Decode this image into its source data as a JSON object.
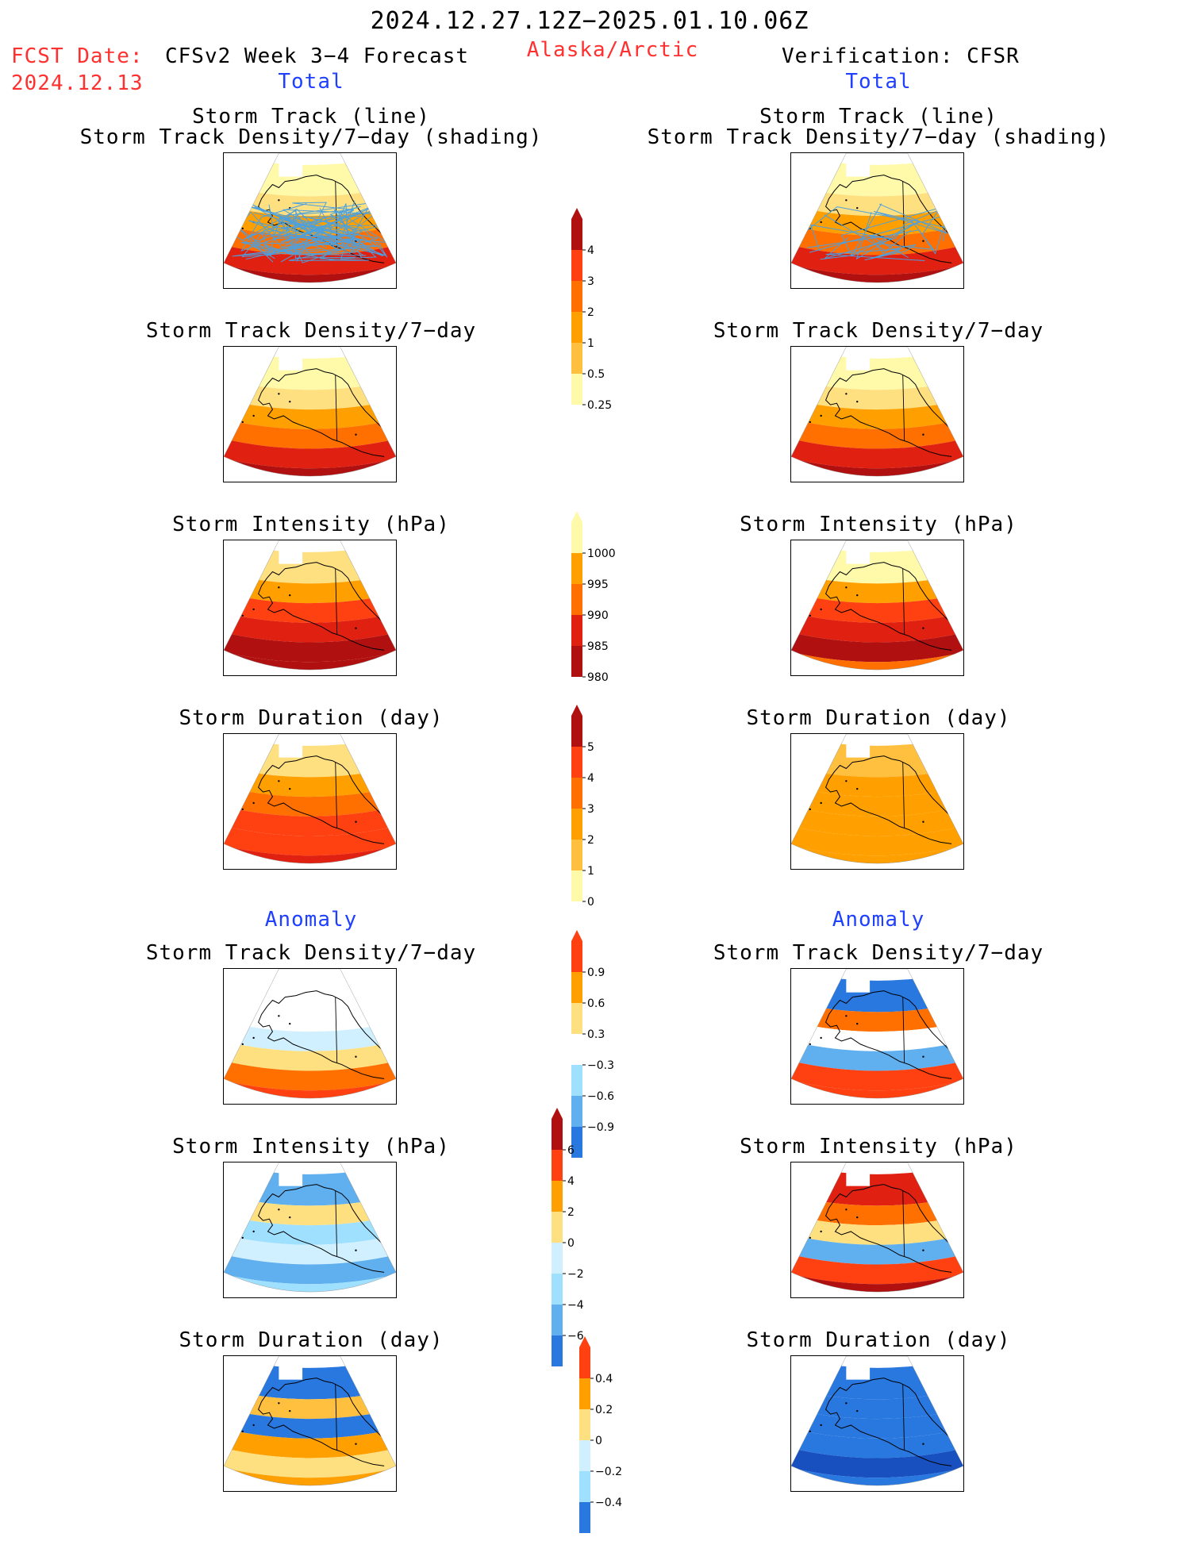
{
  "header": {
    "date_range": "2024.12.27.12Z−2025.01.10.06Z",
    "fcst_label": "FCST Date:",
    "fcst_date": "2024.12.13",
    "forecast_title": "CFSv2 Week 3−4 Forecast",
    "region": "Alaska/Arctic",
    "verification": "Verification: CFSR",
    "total_left": "Total",
    "total_right": "Total",
    "anomaly_left": "Anomaly",
    "anomaly_right": "Anomaly"
  },
  "panels": {
    "track_line": "Storm Track (line)",
    "track_shading": "Storm Track Density/7−day (shading)",
    "density": "Storm Track Density/7−day",
    "intensity": "Storm Intensity (hPa)",
    "duration": "Storm Duration (day)"
  },
  "colorbars": {
    "density_total": [
      "4",
      "3",
      "2",
      "1",
      "0.5",
      "0.25"
    ],
    "intensity_total": [
      "1000",
      "995",
      "990",
      "985",
      "980"
    ],
    "duration_total": [
      "5",
      "4",
      "3",
      "2",
      "1",
      "0"
    ],
    "density_anom": [
      "0.9",
      "0.6",
      "0.3",
      "−0.3",
      "−0.6",
      "−0.9"
    ],
    "intensity_anom": [
      "6",
      "4",
      "2",
      "0",
      "−2",
      "−4",
      "−6"
    ],
    "duration_anom": [
      "0.4",
      "0.2",
      "0",
      "−0.2",
      "−0.4"
    ]
  },
  "colors": {
    "warm": [
      "#fffaaa",
      "#ffe080",
      "#ffc040",
      "#ffa000",
      "#ff7000",
      "#ff4010",
      "#e02010",
      "#b01010"
    ],
    "cool": [
      "#d0f0ff",
      "#a0e0ff",
      "#60b0f0",
      "#2878e0",
      "#1850c0"
    ],
    "track_line": "#4aa0e0"
  }
}
